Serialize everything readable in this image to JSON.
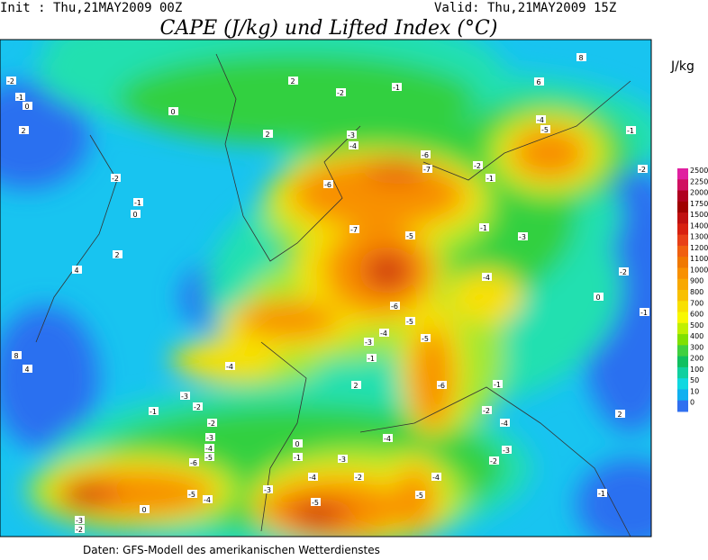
{
  "header": {
    "init": "Init : Thu,21MAY2009 00Z",
    "valid": "Valid: Thu,21MAY2009 15Z",
    "title": "CAPE (J/kg) und Lifted Index (°C)"
  },
  "legend": {
    "unit": "J/kg",
    "levels": [
      2500,
      2250,
      2000,
      1750,
      1500,
      1400,
      1300,
      1200,
      1100,
      1000,
      900,
      800,
      700,
      600,
      500,
      400,
      300,
      200,
      100,
      50,
      10,
      0
    ],
    "colors": [
      "#e020a0",
      "#d01060",
      "#b00020",
      "#a00000",
      "#c01010",
      "#d82010",
      "#e84018",
      "#f06010",
      "#f07800",
      "#f89000",
      "#f8a800",
      "#f8c000",
      "#f8e000",
      "#f8f800",
      "#c0f000",
      "#80e000",
      "#40d040",
      "#10c060",
      "#10d0a0",
      "#10d8e0",
      "#10b0f0",
      "#3070f0"
    ]
  },
  "map": {
    "contour_labels": [
      -2,
      -1,
      0,
      2,
      -2,
      -1,
      0,
      2,
      4,
      8,
      4,
      0,
      2,
      2,
      -2,
      -1,
      -3,
      -4,
      -6,
      -7,
      -6,
      -7,
      -5,
      -6,
      -5,
      -4,
      -5,
      -3,
      -1,
      -4,
      2,
      -6,
      -3,
      -1,
      -2,
      -2,
      -3,
      -4,
      -5,
      -6,
      -5,
      -4,
      0,
      -1,
      -3,
      -4,
      -5,
      -3,
      -2,
      -4,
      -5,
      -4,
      -1,
      -2,
      -4,
      -3,
      -2,
      -4,
      -5,
      -1,
      -2,
      -2,
      0,
      -1,
      2,
      -1,
      -3,
      -1,
      -4,
      -3,
      -2,
      0,
      -2,
      -1,
      8,
      6
    ]
  },
  "footer": {
    "source": "Daten: GFS-Modell des amerikanischen Wetterdienstes"
  }
}
